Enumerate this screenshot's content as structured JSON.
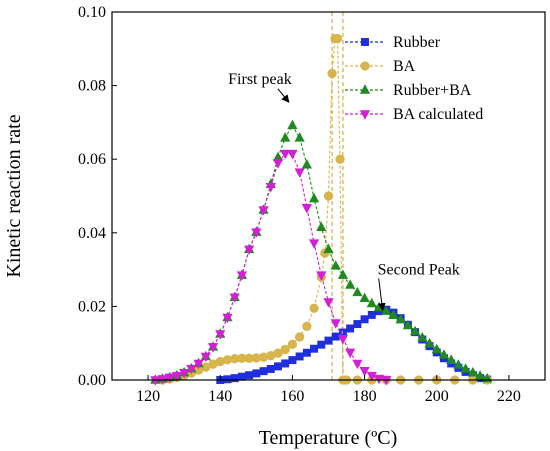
{
  "chart_data": {
    "type": "line",
    "xlabel": "Temperature (ºC)",
    "ylabel": "Kinetic reaction rate",
    "xlim": [
      110,
      230
    ],
    "ylim": [
      0,
      0.1
    ],
    "xticks": [
      "120",
      "140",
      "160",
      "180",
      "200",
      "220"
    ],
    "yticks": [
      "0.00",
      "0.02",
      "0.04",
      "0.06",
      "0.08",
      "0.10"
    ],
    "grid": false,
    "legend_position": "top-right",
    "series": [
      {
        "name": "Rubber",
        "color": "#1f2fdc",
        "marker": "square",
        "x": [
          140,
          142,
          144,
          146,
          148,
          150,
          152,
          154,
          156,
          158,
          160,
          162,
          164,
          166,
          168,
          170,
          172,
          174,
          176,
          178,
          180,
          182,
          184,
          186,
          188,
          190,
          192,
          194,
          196,
          198,
          200,
          202,
          204,
          206,
          208,
          210,
          212,
          214
        ],
        "y": [
          0.0,
          0.0002,
          0.0005,
          0.0009,
          0.0013,
          0.0018,
          0.0024,
          0.003,
          0.0037,
          0.0045,
          0.0054,
          0.0064,
          0.0074,
          0.0085,
          0.0096,
          0.0107,
          0.0118,
          0.0129,
          0.014,
          0.0152,
          0.0165,
          0.0177,
          0.0187,
          0.0191,
          0.0183,
          0.0168,
          0.015,
          0.013,
          0.011,
          0.0092,
          0.0075,
          0.0059,
          0.0045,
          0.0033,
          0.0022,
          0.0013,
          0.0005,
          0.0001
        ]
      },
      {
        "name": "BA",
        "color": "#d8b44c",
        "marker": "circle",
        "x": [
          124,
          126,
          128,
          130,
          132,
          134,
          136,
          138,
          140,
          142,
          144,
          146,
          148,
          150,
          152,
          154,
          156,
          158,
          160,
          162,
          164,
          166,
          168,
          169,
          170,
          171,
          171.8,
          172.5,
          173.2,
          174,
          175,
          178,
          182,
          186,
          190,
          195,
          200,
          205,
          210,
          214
        ],
        "y": [
          0.0,
          0.0003,
          0.0007,
          0.0012,
          0.0019,
          0.0027,
          0.0035,
          0.0043,
          0.005,
          0.0055,
          0.0058,
          0.0059,
          0.0059,
          0.006,
          0.0062,
          0.0066,
          0.0073,
          0.0083,
          0.0097,
          0.0117,
          0.0146,
          0.0195,
          0.028,
          0.0345,
          0.05,
          0.0833,
          0.0928,
          0.0928,
          0.06,
          0.0,
          0.0,
          0.0,
          0.0,
          0.0,
          0.0,
          0.0,
          0.0,
          0.0,
          0.0,
          0.0
        ]
      },
      {
        "name": "Rubber+BA",
        "color": "#1f8a1f",
        "marker": "triangle-up",
        "x": [
          122,
          124,
          126,
          128,
          130,
          132,
          134,
          136,
          138,
          140,
          142,
          144,
          146,
          148,
          150,
          152,
          154,
          156,
          158,
          160,
          162,
          164,
          166,
          168,
          170,
          172,
          174,
          176,
          178,
          180,
          182,
          184,
          186,
          188,
          190,
          192,
          194,
          196,
          198,
          200,
          202,
          204,
          206,
          208,
          210,
          212,
          214
        ],
        "y": [
          0.0,
          0.0003,
          0.0007,
          0.0012,
          0.002,
          0.0031,
          0.0045,
          0.0064,
          0.009,
          0.0125,
          0.017,
          0.0225,
          0.0285,
          0.0355,
          0.0402,
          0.0462,
          0.0532,
          0.0605,
          0.0658,
          0.0692,
          0.0658,
          0.0585,
          0.0493,
          0.0415,
          0.0355,
          0.031,
          0.0285,
          0.0258,
          0.0238,
          0.0222,
          0.0208,
          0.0197,
          0.0187,
          0.0176,
          0.0164,
          0.0148,
          0.0132,
          0.0115,
          0.0099,
          0.0083,
          0.0068,
          0.0054,
          0.0041,
          0.003,
          0.002,
          0.0011,
          0.0004
        ]
      },
      {
        "name": "BA calculated",
        "color": "#d41fd4",
        "marker": "triangle-down",
        "x": [
          122,
          124,
          126,
          128,
          130,
          132,
          134,
          136,
          138,
          140,
          142,
          144,
          146,
          148,
          150,
          152,
          154,
          156,
          158,
          160,
          162,
          164,
          166,
          168,
          170,
          172,
          174,
          176,
          178,
          180,
          182,
          184,
          186
        ],
        "y": [
          0.0,
          0.0003,
          0.0007,
          0.0012,
          0.002,
          0.0031,
          0.0045,
          0.0064,
          0.009,
          0.0125,
          0.017,
          0.0225,
          0.0285,
          0.0355,
          0.0402,
          0.0462,
          0.0525,
          0.059,
          0.0615,
          0.0615,
          0.0565,
          0.0468,
          0.0372,
          0.0285,
          0.0212,
          0.0155,
          0.0112,
          0.0075,
          0.0045,
          0.0025,
          0.0012,
          0.0004,
          0.0001
        ]
      }
    ],
    "vlines": [
      {
        "x": 171,
        "color": "#d8b44c"
      },
      {
        "x": 174,
        "color": "#d8b44c"
      }
    ],
    "annotations": [
      {
        "text": "First peak",
        "point": [
          159,
          0.0755
        ],
        "label_at": [
          151,
          0.0805
        ]
      },
      {
        "text": "Second Peak",
        "point": [
          185,
          0.019
        ],
        "label_at": [
          195,
          0.0287
        ]
      }
    ]
  }
}
